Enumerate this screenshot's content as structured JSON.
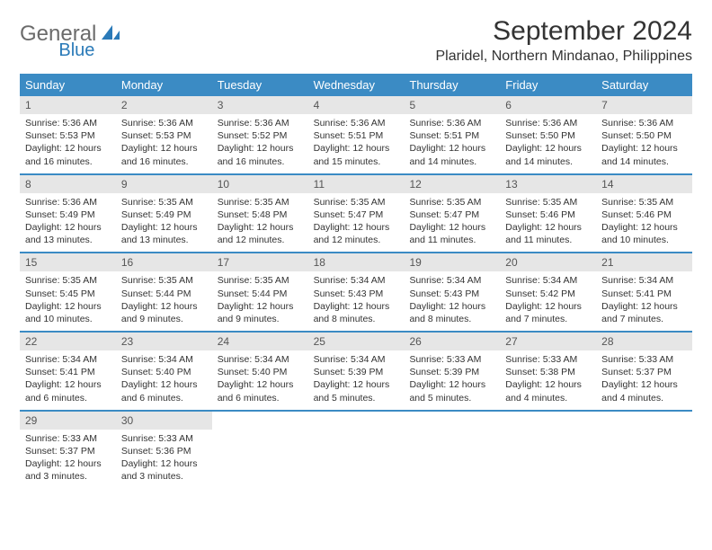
{
  "logo": {
    "part1": "General",
    "part2": "Blue"
  },
  "title": "September 2024",
  "location": "Plaridel, Northern Mindanao, Philippines",
  "colors": {
    "header_blue": "#3b8bc4",
    "logo_gray": "#6b6b6b",
    "logo_blue": "#2a7ab8",
    "daynum_bg": "#e6e6e6",
    "text": "#333333"
  },
  "dow": [
    "Sunday",
    "Monday",
    "Tuesday",
    "Wednesday",
    "Thursday",
    "Friday",
    "Saturday"
  ],
  "weeks": [
    [
      {
        "n": "1",
        "sr": "Sunrise: 5:36 AM",
        "ss": "Sunset: 5:53 PM",
        "d1": "Daylight: 12 hours",
        "d2": "and 16 minutes."
      },
      {
        "n": "2",
        "sr": "Sunrise: 5:36 AM",
        "ss": "Sunset: 5:53 PM",
        "d1": "Daylight: 12 hours",
        "d2": "and 16 minutes."
      },
      {
        "n": "3",
        "sr": "Sunrise: 5:36 AM",
        "ss": "Sunset: 5:52 PM",
        "d1": "Daylight: 12 hours",
        "d2": "and 16 minutes."
      },
      {
        "n": "4",
        "sr": "Sunrise: 5:36 AM",
        "ss": "Sunset: 5:51 PM",
        "d1": "Daylight: 12 hours",
        "d2": "and 15 minutes."
      },
      {
        "n": "5",
        "sr": "Sunrise: 5:36 AM",
        "ss": "Sunset: 5:51 PM",
        "d1": "Daylight: 12 hours",
        "d2": "and 14 minutes."
      },
      {
        "n": "6",
        "sr": "Sunrise: 5:36 AM",
        "ss": "Sunset: 5:50 PM",
        "d1": "Daylight: 12 hours",
        "d2": "and 14 minutes."
      },
      {
        "n": "7",
        "sr": "Sunrise: 5:36 AM",
        "ss": "Sunset: 5:50 PM",
        "d1": "Daylight: 12 hours",
        "d2": "and 14 minutes."
      }
    ],
    [
      {
        "n": "8",
        "sr": "Sunrise: 5:36 AM",
        "ss": "Sunset: 5:49 PM",
        "d1": "Daylight: 12 hours",
        "d2": "and 13 minutes."
      },
      {
        "n": "9",
        "sr": "Sunrise: 5:35 AM",
        "ss": "Sunset: 5:49 PM",
        "d1": "Daylight: 12 hours",
        "d2": "and 13 minutes."
      },
      {
        "n": "10",
        "sr": "Sunrise: 5:35 AM",
        "ss": "Sunset: 5:48 PM",
        "d1": "Daylight: 12 hours",
        "d2": "and 12 minutes."
      },
      {
        "n": "11",
        "sr": "Sunrise: 5:35 AM",
        "ss": "Sunset: 5:47 PM",
        "d1": "Daylight: 12 hours",
        "d2": "and 12 minutes."
      },
      {
        "n": "12",
        "sr": "Sunrise: 5:35 AM",
        "ss": "Sunset: 5:47 PM",
        "d1": "Daylight: 12 hours",
        "d2": "and 11 minutes."
      },
      {
        "n": "13",
        "sr": "Sunrise: 5:35 AM",
        "ss": "Sunset: 5:46 PM",
        "d1": "Daylight: 12 hours",
        "d2": "and 11 minutes."
      },
      {
        "n": "14",
        "sr": "Sunrise: 5:35 AM",
        "ss": "Sunset: 5:46 PM",
        "d1": "Daylight: 12 hours",
        "d2": "and 10 minutes."
      }
    ],
    [
      {
        "n": "15",
        "sr": "Sunrise: 5:35 AM",
        "ss": "Sunset: 5:45 PM",
        "d1": "Daylight: 12 hours",
        "d2": "and 10 minutes."
      },
      {
        "n": "16",
        "sr": "Sunrise: 5:35 AM",
        "ss": "Sunset: 5:44 PM",
        "d1": "Daylight: 12 hours",
        "d2": "and 9 minutes."
      },
      {
        "n": "17",
        "sr": "Sunrise: 5:35 AM",
        "ss": "Sunset: 5:44 PM",
        "d1": "Daylight: 12 hours",
        "d2": "and 9 minutes."
      },
      {
        "n": "18",
        "sr": "Sunrise: 5:34 AM",
        "ss": "Sunset: 5:43 PM",
        "d1": "Daylight: 12 hours",
        "d2": "and 8 minutes."
      },
      {
        "n": "19",
        "sr": "Sunrise: 5:34 AM",
        "ss": "Sunset: 5:43 PM",
        "d1": "Daylight: 12 hours",
        "d2": "and 8 minutes."
      },
      {
        "n": "20",
        "sr": "Sunrise: 5:34 AM",
        "ss": "Sunset: 5:42 PM",
        "d1": "Daylight: 12 hours",
        "d2": "and 7 minutes."
      },
      {
        "n": "21",
        "sr": "Sunrise: 5:34 AM",
        "ss": "Sunset: 5:41 PM",
        "d1": "Daylight: 12 hours",
        "d2": "and 7 minutes."
      }
    ],
    [
      {
        "n": "22",
        "sr": "Sunrise: 5:34 AM",
        "ss": "Sunset: 5:41 PM",
        "d1": "Daylight: 12 hours",
        "d2": "and 6 minutes."
      },
      {
        "n": "23",
        "sr": "Sunrise: 5:34 AM",
        "ss": "Sunset: 5:40 PM",
        "d1": "Daylight: 12 hours",
        "d2": "and 6 minutes."
      },
      {
        "n": "24",
        "sr": "Sunrise: 5:34 AM",
        "ss": "Sunset: 5:40 PM",
        "d1": "Daylight: 12 hours",
        "d2": "and 6 minutes."
      },
      {
        "n": "25",
        "sr": "Sunrise: 5:34 AM",
        "ss": "Sunset: 5:39 PM",
        "d1": "Daylight: 12 hours",
        "d2": "and 5 minutes."
      },
      {
        "n": "26",
        "sr": "Sunrise: 5:33 AM",
        "ss": "Sunset: 5:39 PM",
        "d1": "Daylight: 12 hours",
        "d2": "and 5 minutes."
      },
      {
        "n": "27",
        "sr": "Sunrise: 5:33 AM",
        "ss": "Sunset: 5:38 PM",
        "d1": "Daylight: 12 hours",
        "d2": "and 4 minutes."
      },
      {
        "n": "28",
        "sr": "Sunrise: 5:33 AM",
        "ss": "Sunset: 5:37 PM",
        "d1": "Daylight: 12 hours",
        "d2": "and 4 minutes."
      }
    ],
    [
      {
        "n": "29",
        "sr": "Sunrise: 5:33 AM",
        "ss": "Sunset: 5:37 PM",
        "d1": "Daylight: 12 hours",
        "d2": "and 3 minutes."
      },
      {
        "n": "30",
        "sr": "Sunrise: 5:33 AM",
        "ss": "Sunset: 5:36 PM",
        "d1": "Daylight: 12 hours",
        "d2": "and 3 minutes."
      },
      {
        "empty": true
      },
      {
        "empty": true
      },
      {
        "empty": true
      },
      {
        "empty": true
      },
      {
        "empty": true
      }
    ]
  ]
}
